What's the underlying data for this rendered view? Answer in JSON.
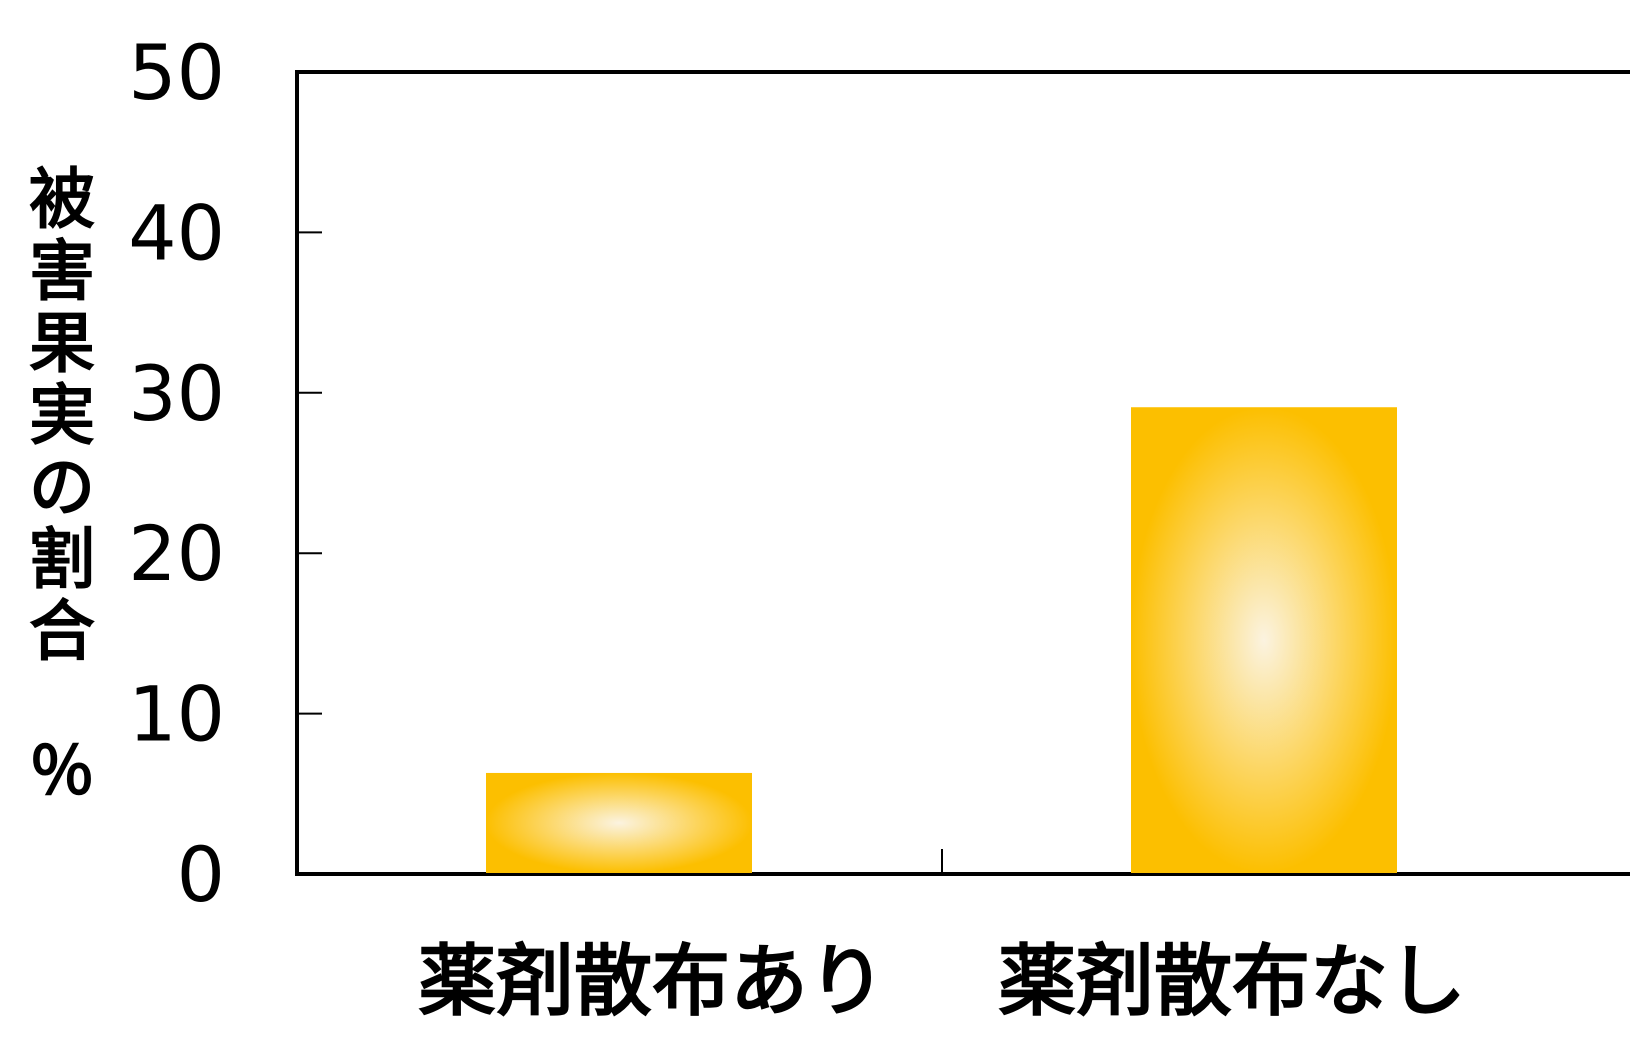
{
  "chart_data": {
    "type": "bar",
    "title": "",
    "xlabel": "",
    "ylabel": "被害果実の割合　％",
    "ylabel_chars": [
      "被",
      "害",
      "果",
      "実",
      "の",
      "割",
      "合",
      "％"
    ],
    "categories": [
      "薬剤散布あり",
      "薬剤散布なし"
    ],
    "values": [
      6.3,
      29.1
    ],
    "ylim": [
      0,
      50
    ],
    "yticks": [
      "0",
      "10",
      "20",
      "30",
      "40",
      "50"
    ],
    "ytick_values": [
      0,
      10,
      20,
      30,
      40,
      50
    ],
    "grid": false,
    "legend": "none",
    "colors": {
      "bar": "#fcbf00",
      "bar_highlight": "#fbf3e0",
      "axis": "#000000"
    }
  }
}
